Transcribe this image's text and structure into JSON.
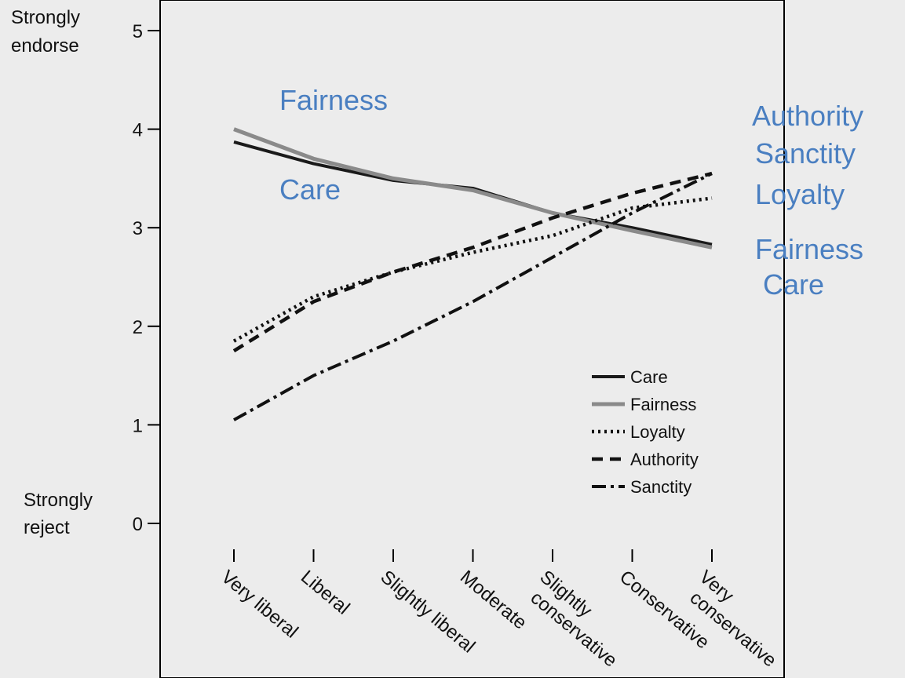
{
  "chart_data": {
    "type": "line",
    "categories": [
      "Very liberal",
      "Liberal",
      "Slightly liberal",
      "Moderate",
      "Slightly conservative",
      "Conservative",
      "Very conservative"
    ],
    "ylim": [
      0,
      5
    ],
    "yticks": [
      0,
      1,
      2,
      3,
      4,
      5
    ],
    "ylabel_top": "Strongly endorse",
    "ylabel_bottom": "Strongly reject",
    "grid": false,
    "legend_position": "lower-right",
    "series": [
      {
        "name": "Care",
        "style": "solid",
        "color": "#1a1a1a",
        "values": [
          3.87,
          3.65,
          3.48,
          3.4,
          3.15,
          3.0,
          2.83
        ]
      },
      {
        "name": "Fairness",
        "style": "solid-gray",
        "color": "#8a8a8a",
        "values": [
          4.0,
          3.7,
          3.5,
          3.38,
          3.15,
          2.97,
          2.8
        ]
      },
      {
        "name": "Loyalty",
        "style": "dotted",
        "color": "#111111",
        "values": [
          1.85,
          2.3,
          2.55,
          2.75,
          2.92,
          3.2,
          3.3
        ]
      },
      {
        "name": "Authority",
        "style": "dashed",
        "color": "#111111",
        "values": [
          1.75,
          2.25,
          2.55,
          2.8,
          3.1,
          3.35,
          3.55
        ]
      },
      {
        "name": "Sanctity",
        "style": "dashdot",
        "color": "#111111",
        "values": [
          1.05,
          1.5,
          1.85,
          2.25,
          2.7,
          3.15,
          3.55
        ]
      }
    ],
    "annotations": {
      "color": "#4a7fc1",
      "left": [
        "Fairness",
        "Care"
      ],
      "right": [
        "Authority",
        "Sanctity",
        "Loyalty",
        "Fairness",
        "Care"
      ]
    }
  }
}
